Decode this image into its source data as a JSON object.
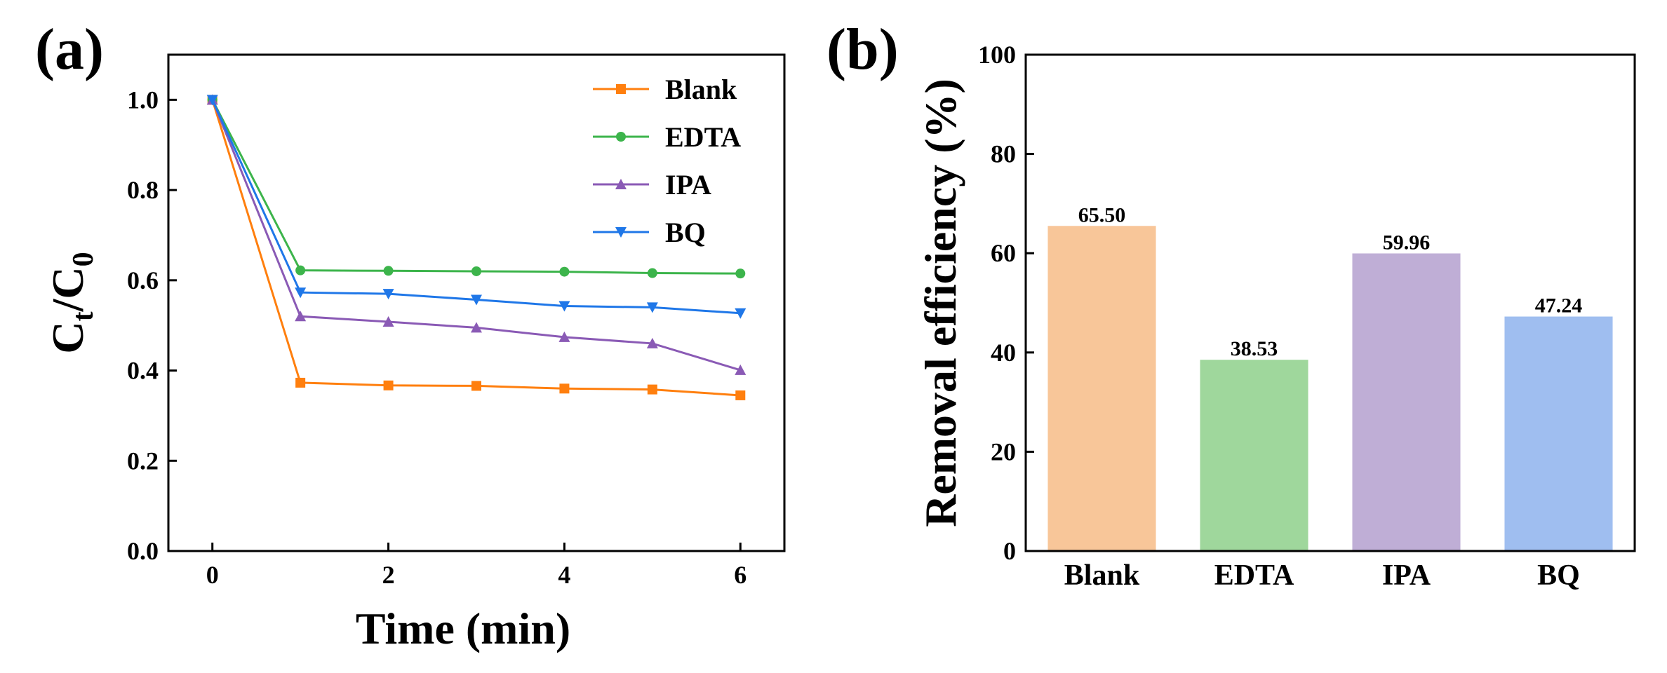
{
  "chart_data": [
    {
      "panel_label": "(a)",
      "type": "line",
      "xlabel": "Time (min)",
      "ylabel_main": "C",
      "ylabel_sub1": "t",
      "ylabel_mid": "/C",
      "ylabel_sub2": "0",
      "xlim": [
        -0.5,
        6.5
      ],
      "ylim": [
        0.0,
        1.1
      ],
      "xticks": [
        0,
        2,
        4,
        6
      ],
      "xtick_labels": [
        "0",
        "2",
        "4",
        "6"
      ],
      "yticks": [
        0.0,
        0.2,
        0.4,
        0.6,
        0.8,
        1.0
      ],
      "ytick_labels": [
        "0.0",
        "0.2",
        "0.4",
        "0.6",
        "0.8",
        "1.0"
      ],
      "grid": false,
      "legend_position": "top-right",
      "x": [
        0,
        1,
        2,
        3,
        4,
        5,
        6
      ],
      "series": [
        {
          "name": "Blank",
          "color": "#FF7F0E",
          "marker": "square",
          "values": [
            1.0,
            0.373,
            0.367,
            0.366,
            0.36,
            0.358,
            0.345
          ]
        },
        {
          "name": "EDTA",
          "color": "#3CB44B",
          "marker": "circle",
          "values": [
            1.0,
            0.622,
            0.621,
            0.62,
            0.619,
            0.616,
            0.615
          ]
        },
        {
          "name": "IPA",
          "color": "#8A5AB5",
          "marker": "triangle-up",
          "values": [
            1.0,
            0.52,
            0.508,
            0.495,
            0.474,
            0.46,
            0.401
          ]
        },
        {
          "name": "BQ",
          "color": "#1F77E8",
          "marker": "triangle-down",
          "values": [
            1.0,
            0.573,
            0.57,
            0.557,
            0.543,
            0.54,
            0.527
          ]
        }
      ]
    },
    {
      "panel_label": "(b)",
      "type": "bar",
      "ylabel": "Removal efficiency (%)",
      "ylim": [
        0,
        100
      ],
      "yticks": [
        0,
        20,
        40,
        60,
        80,
        100
      ],
      "ytick_labels": [
        "0",
        "20",
        "40",
        "60",
        "80",
        "100"
      ],
      "grid": false,
      "categories": [
        "Blank",
        "EDTA",
        "IPA",
        "BQ"
      ],
      "values": [
        65.5,
        38.53,
        59.96,
        47.24
      ],
      "value_labels": [
        "65.50",
        "38.53",
        "59.96",
        "47.24"
      ],
      "colors": [
        "#F8C699",
        "#9FD79C",
        "#BFAED6",
        "#9FBEF0"
      ]
    }
  ]
}
